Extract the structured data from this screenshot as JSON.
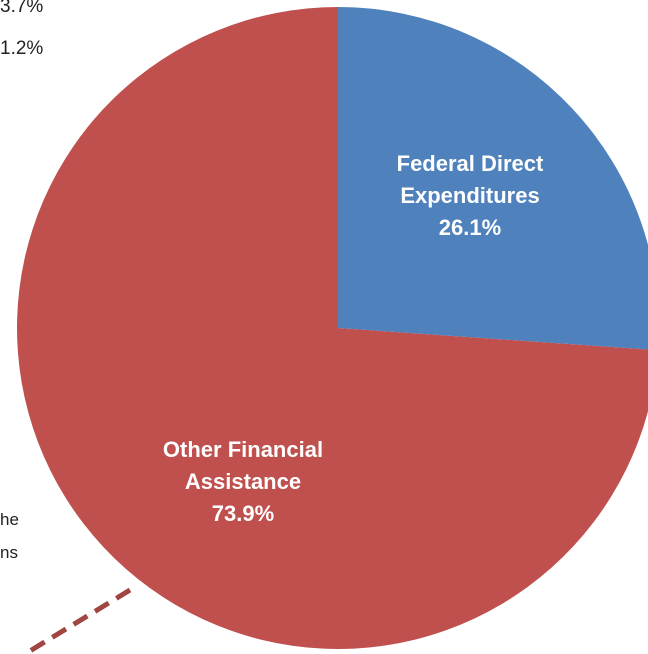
{
  "chart_data": {
    "type": "pie",
    "categories": [
      "Federal Direct Expenditures",
      "Other Financial Assistance"
    ],
    "values": [
      26.1,
      73.9
    ],
    "value_labels": [
      "26.1%",
      "73.9%"
    ],
    "colors": [
      "#4f81bd",
      "#c0504d"
    ],
    "cropped_text": [
      "3.7%",
      "1.2%",
      "he",
      "ns"
    ]
  }
}
